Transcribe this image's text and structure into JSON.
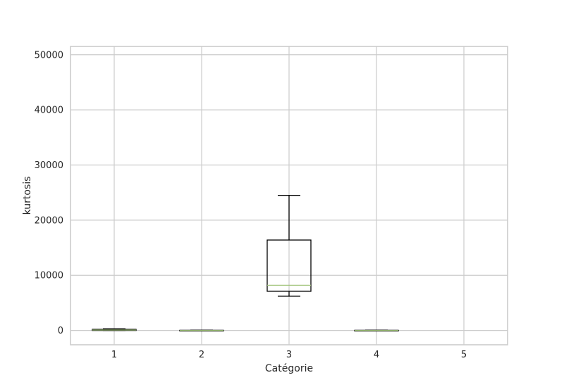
{
  "chart_data": {
    "type": "box",
    "title": "",
    "xlabel": "Catégorie",
    "ylabel": "kurtosis",
    "categories": [
      "1",
      "2",
      "3",
      "4",
      "5"
    ],
    "y_ticks": [
      0,
      10000,
      20000,
      30000,
      40000,
      50000
    ],
    "ylim": [
      -2600,
      51500
    ],
    "xlim": [
      0.5,
      5.5
    ],
    "grid": true,
    "boxes": [
      {
        "category": "1",
        "whisker_low": 0,
        "q1": 0,
        "median": 80,
        "q3": 200,
        "whisker_high": 300
      },
      {
        "category": "2",
        "whisker_low": -50,
        "q1": -30,
        "median": 0,
        "q3": 30,
        "whisker_high": 50
      },
      {
        "category": "3",
        "whisker_low": 6200,
        "q1": 7100,
        "median": 8200,
        "q3": 16400,
        "whisker_high": 24500
      },
      {
        "category": "4",
        "whisker_low": -50,
        "q1": -30,
        "median": 0,
        "q3": 30,
        "whisker_high": 50
      },
      {
        "category": "5",
        "whisker_low": null,
        "q1": null,
        "median": null,
        "q3": null,
        "whisker_high": null
      }
    ],
    "colors": {
      "background": "#ffffff",
      "plot_background": "#ffffff",
      "grid": "#cccccc",
      "spine": "#cccccc",
      "box": "#000000",
      "median": "#a1c47a",
      "text": "#262626"
    }
  }
}
